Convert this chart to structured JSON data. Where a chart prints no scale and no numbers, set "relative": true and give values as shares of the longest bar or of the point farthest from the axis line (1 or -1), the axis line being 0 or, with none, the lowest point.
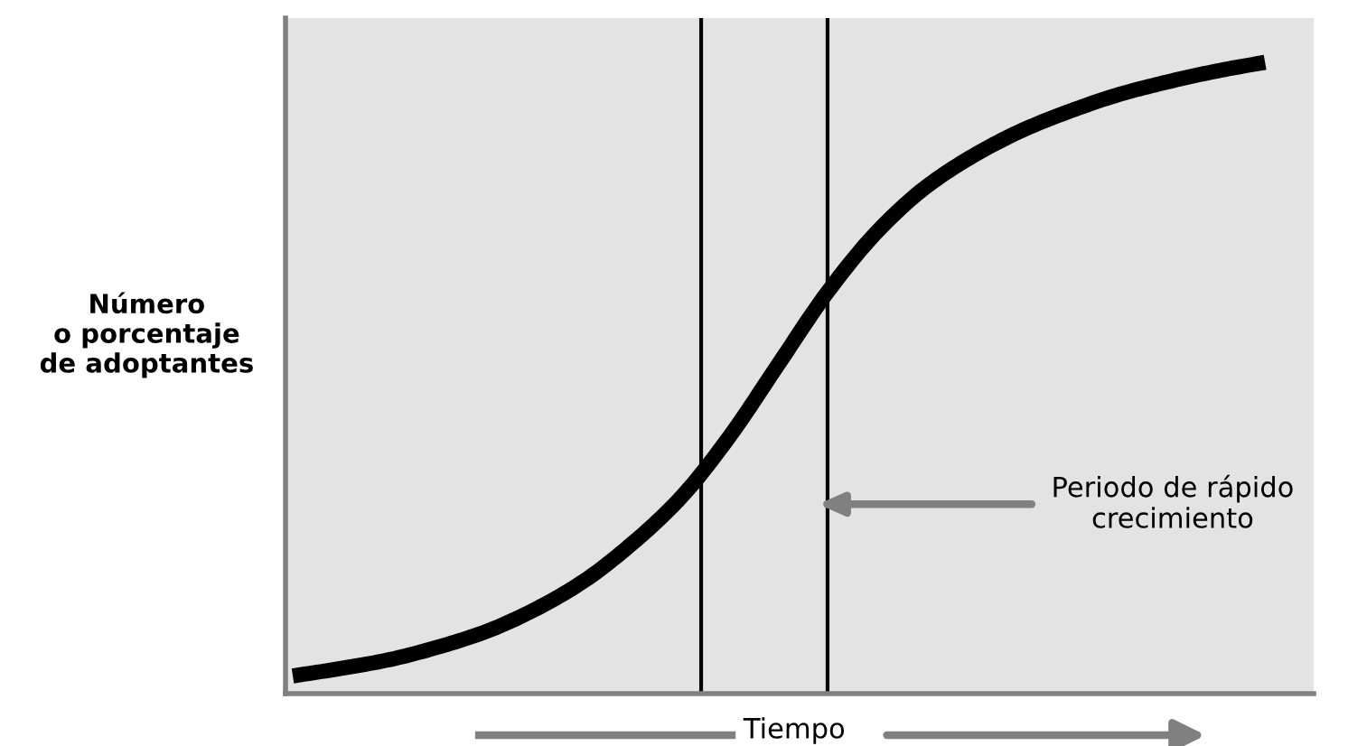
{
  "chart_data": {
    "type": "line",
    "relative": true,
    "xlabel": "Tiempo",
    "ylabel": "Número\no porcentaje\nde adoptantes",
    "categories": [
      null,
      null,
      null,
      null,
      null,
      null,
      null,
      null,
      null,
      null,
      null,
      null,
      null,
      null,
      null,
      null,
      null,
      null,
      null,
      null,
      null
    ],
    "series": [
      {
        "color": "#000000",
        "values": [
          0.028,
          0.04,
          0.054,
          0.074,
          0.099,
          0.134,
          0.179,
          0.239,
          0.312,
          0.409,
          0.523,
          0.636,
          0.73,
          0.801,
          0.852,
          0.892,
          0.923,
          0.949,
          0.969,
          0.986,
          1.0
        ]
      }
    ],
    "annotations": [
      "Periodo de rápido\ncrecimiento"
    ],
    "legend": false,
    "marker": "none",
    "line_style": "solid"
  }
}
